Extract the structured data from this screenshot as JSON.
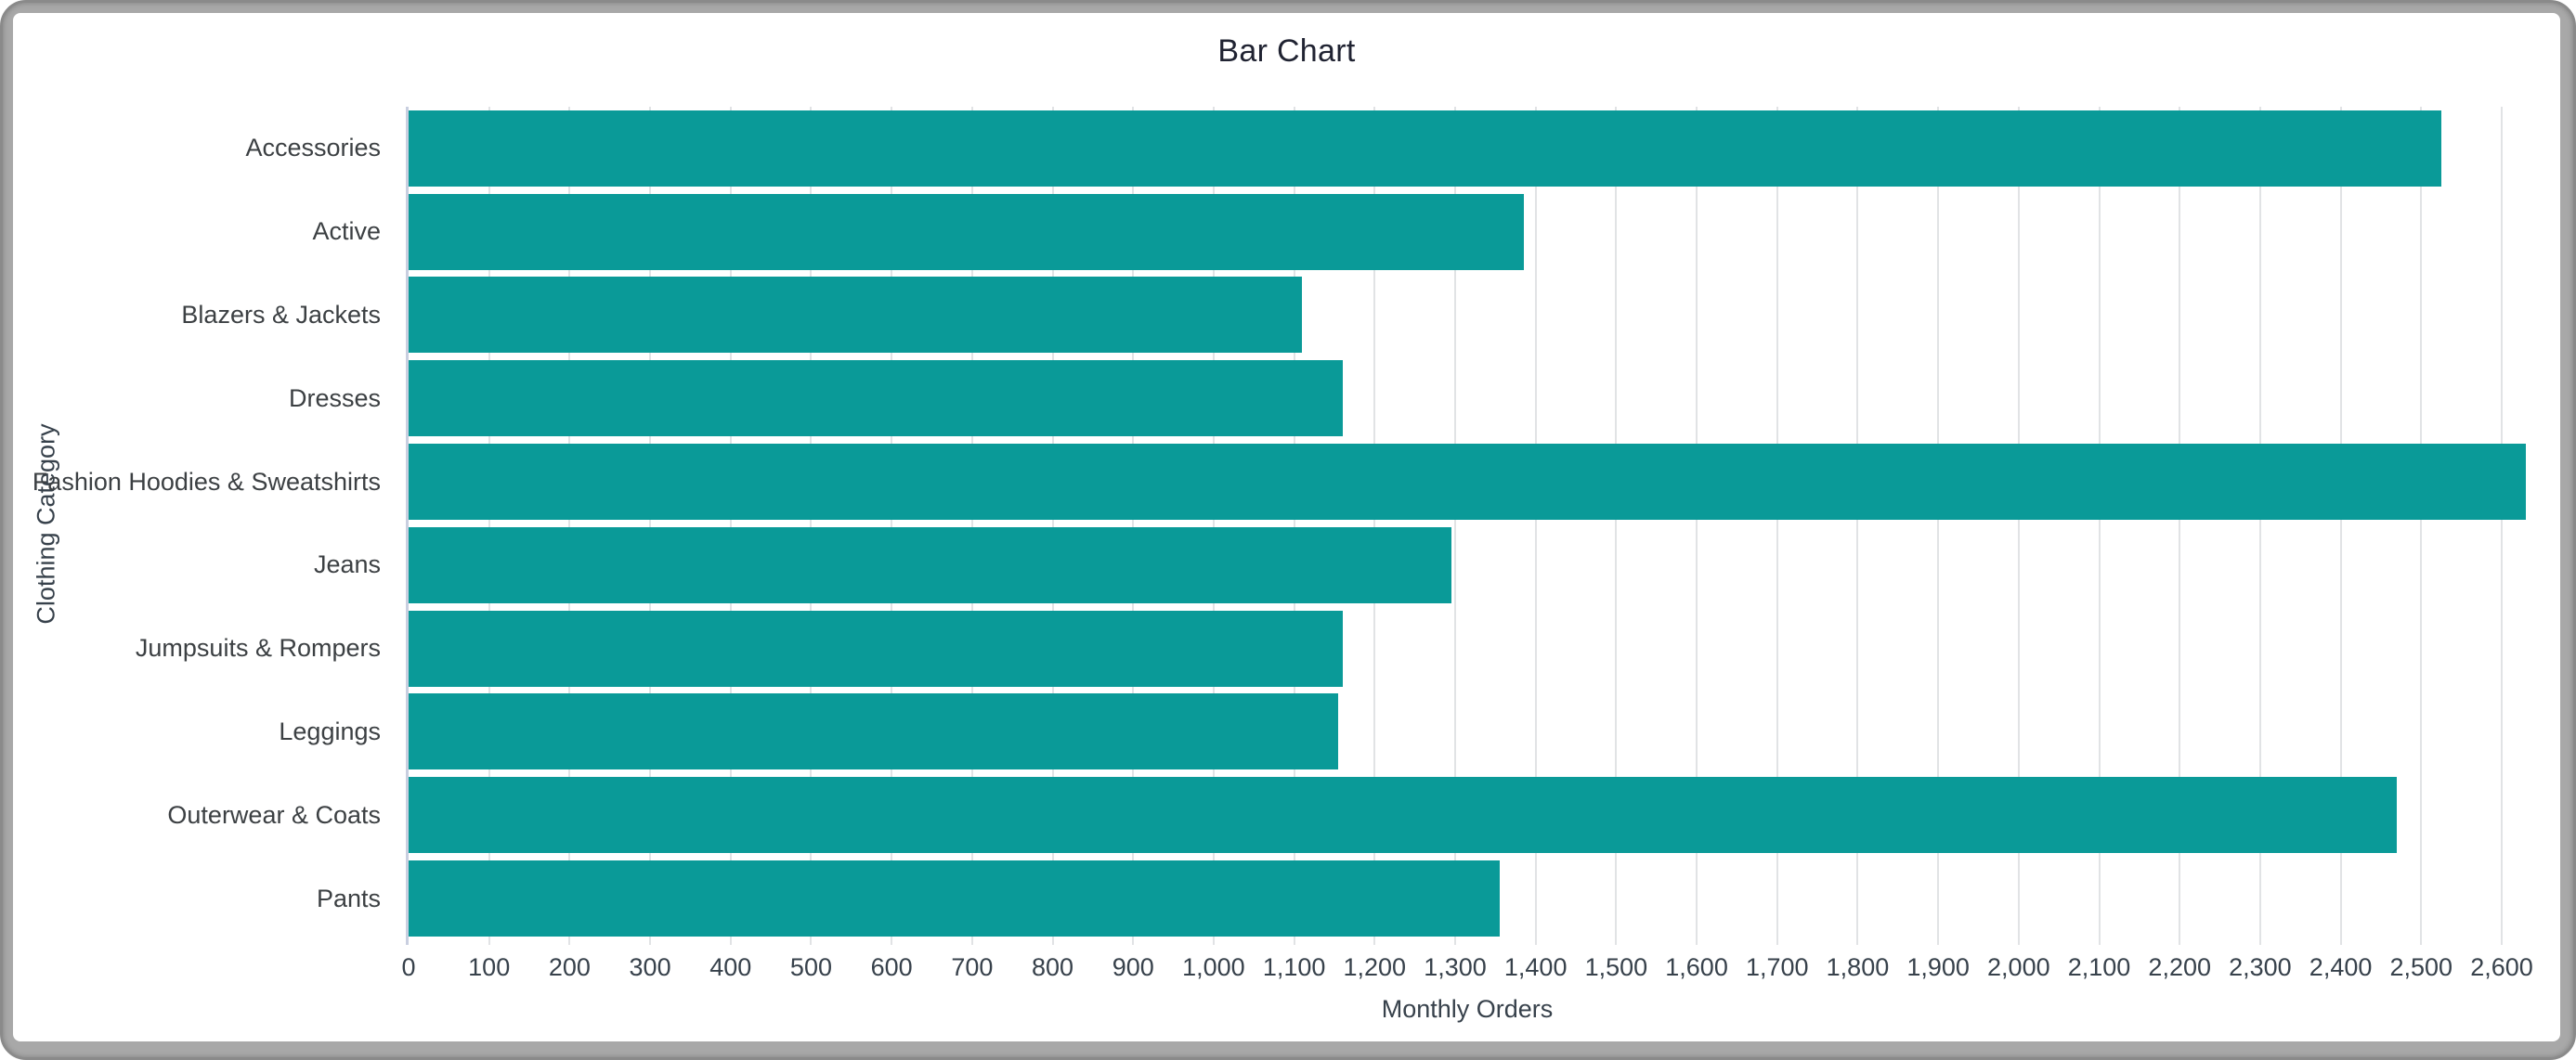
{
  "window": {
    "frame_color": "#a8a8a8",
    "frame_border_color": "#8a8a8a",
    "card_color": "#ffffff"
  },
  "chart_data": {
    "type": "bar",
    "orientation": "horizontal",
    "title": "Bar Chart",
    "xlabel": "Monthly Orders",
    "ylabel": "Clothing Category",
    "categories": [
      "Accessories",
      "Active",
      "Blazers & Jackets",
      "Dresses",
      "Fashion Hoodies & Sweatshirts",
      "Jeans",
      "Jumpsuits & Rompers",
      "Leggings",
      "Outerwear & Coats",
      "Pants"
    ],
    "values": [
      2525,
      1385,
      1110,
      1160,
      2630,
      1295,
      1160,
      1155,
      2470,
      1355
    ],
    "xlim": [
      0,
      2630
    ],
    "xticks": [
      0,
      100,
      200,
      300,
      400,
      500,
      600,
      700,
      800,
      900,
      1000,
      1100,
      1200,
      1300,
      1400,
      1500,
      1600,
      1700,
      1800,
      1900,
      2000,
      2100,
      2200,
      2300,
      2400,
      2500,
      2600
    ],
    "tick_format": "thousands-comma",
    "grid": true,
    "legend": "none",
    "bar_color": "#0a9a98",
    "gridline_color": "#e1e3e5",
    "axis_line_color": "#c9cfe0",
    "title_color": "#202332",
    "label_color": "#3c4043",
    "tick_color": "#37414b"
  }
}
